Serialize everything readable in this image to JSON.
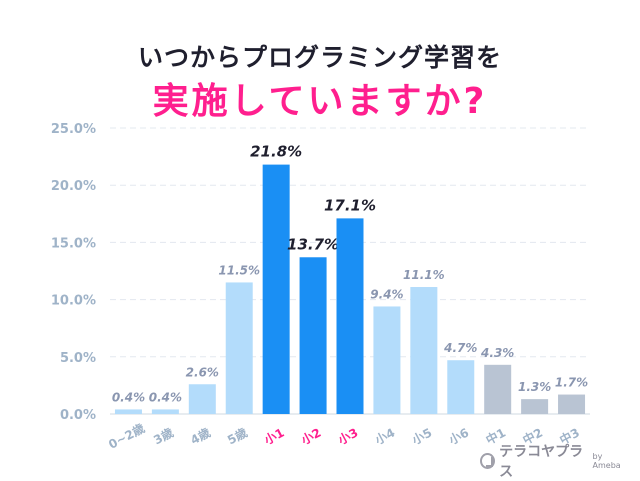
{
  "title_line1": "いつからプログラミング学習を",
  "title_line2": "実施していますか?",
  "brand": {
    "name": "テラコヤプラス",
    "suffix": "by Ameba"
  },
  "colors": {
    "light": "#b3dcfb",
    "strong": "#1a8ff4",
    "gray": "#b9c4d3",
    "pink": "#ff1f8e",
    "axis_text": "#9fb3c8",
    "value_text": "#8a96b0",
    "value_text_strong": "#1f1f2e"
  },
  "chart_data": {
    "type": "bar",
    "categories": [
      "0~2歳",
      "3歳",
      "4歳",
      "5歳",
      "小1",
      "小2",
      "小3",
      "小4",
      "小5",
      "小6",
      "中1",
      "中2",
      "中3"
    ],
    "values": [
      0.4,
      0.4,
      2.6,
      11.5,
      21.8,
      13.7,
      17.1,
      9.4,
      11.1,
      4.7,
      4.3,
      1.3,
      1.7
    ],
    "value_labels": [
      "0.4%",
      "0.4%",
      "2.6%",
      "11.5%",
      "21.8%",
      "13.7%",
      "17.1%",
      "9.4%",
      "11.1%",
      "4.7%",
      "4.3%",
      "1.3%",
      "1.7%"
    ],
    "highlight": [
      "light",
      "light",
      "light",
      "light",
      "strong",
      "strong",
      "strong",
      "light",
      "light",
      "light",
      "gray",
      "gray",
      "gray"
    ],
    "yticks": [
      "0.0%",
      "5.0%",
      "10.0%",
      "15.0%",
      "20.0%",
      "25.0%"
    ],
    "ylim": [
      0,
      25
    ],
    "grid": true,
    "xlabel": "",
    "ylabel": ""
  }
}
